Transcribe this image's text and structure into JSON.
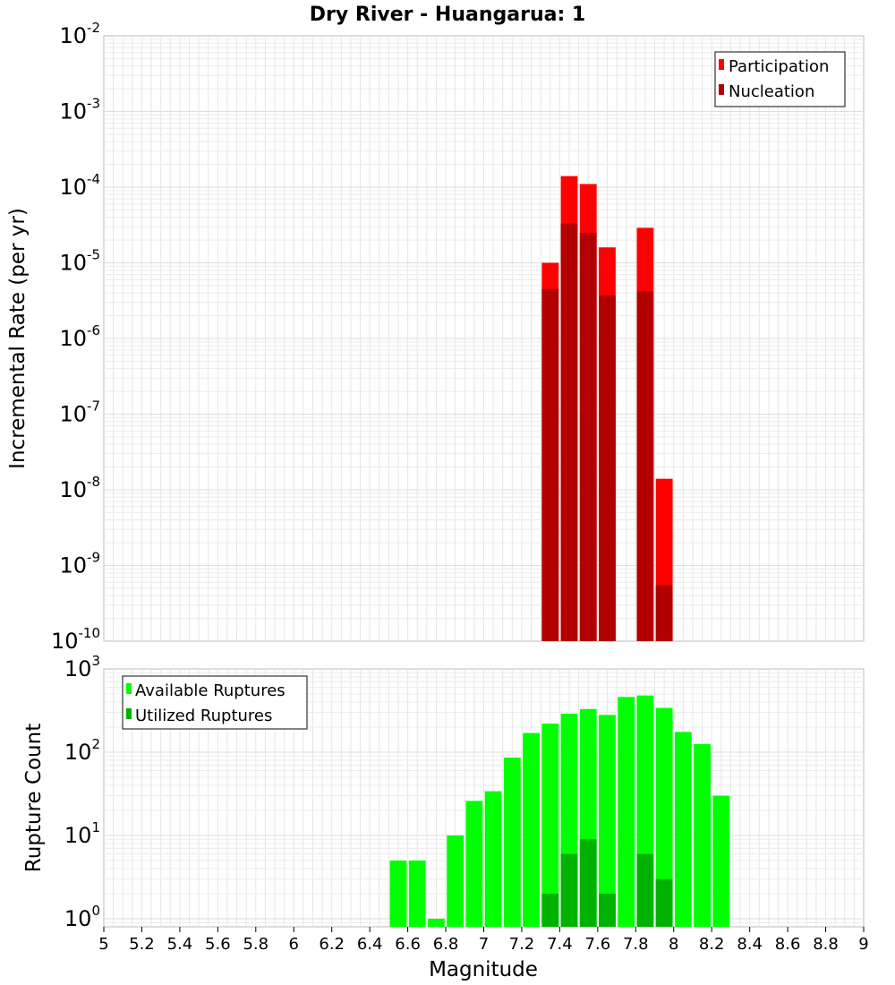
{
  "title": "Dry River - Huangarua: 1",
  "xlabel": "Magnitude",
  "chart_data": [
    {
      "type": "bar",
      "ylabel": "Incremental Rate (per yr)",
      "yscale": "log",
      "ylim": [
        1e-10,
        0.01
      ],
      "xlim": [
        5,
        9
      ],
      "y_tick_exponents": [
        -10,
        -9,
        -8,
        -7,
        -6,
        -5,
        -4,
        -3,
        -2
      ],
      "legend_position": "top-right",
      "grid": true,
      "bar_width": 0.1,
      "series": [
        {
          "name": "Participation",
          "color": "#ff0000",
          "x": [
            7.35,
            7.45,
            7.55,
            7.65,
            7.85,
            7.95
          ],
          "values": [
            1e-05,
            0.00014,
            0.00011,
            1.6e-05,
            2.9e-05,
            1.4e-08
          ]
        },
        {
          "name": "Nucleation",
          "color": "#b20000",
          "x": [
            7.35,
            7.45,
            7.55,
            7.65,
            7.85,
            7.95
          ],
          "values": [
            4.5e-06,
            3.3e-05,
            2.5e-05,
            3.7e-06,
            4.2e-06,
            5.5e-10
          ]
        }
      ]
    },
    {
      "type": "bar",
      "ylabel": "Rupture Count",
      "yscale": "log",
      "ylim": [
        0.8,
        1000
      ],
      "xlim": [
        5,
        9
      ],
      "y_tick_exponents": [
        0,
        1,
        2,
        3
      ],
      "legend_position": "top-left",
      "grid": true,
      "bar_width": 0.1,
      "series": [
        {
          "name": "Available Ruptures",
          "color": "#00ff00",
          "x": [
            6.55,
            6.65,
            6.75,
            6.85,
            6.95,
            7.05,
            7.15,
            7.25,
            7.35,
            7.45,
            7.55,
            7.65,
            7.75,
            7.85,
            7.95,
            8.05,
            8.15,
            8.25
          ],
          "values": [
            5,
            5,
            1,
            10,
            26,
            34,
            86,
            170,
            220,
            290,
            330,
            280,
            460,
            480,
            340,
            175,
            125,
            30
          ]
        },
        {
          "name": "Utilized Ruptures",
          "color": "#00b200",
          "x": [
            7.35,
            7.45,
            7.55,
            7.65,
            7.85,
            7.95
          ],
          "values": [
            2,
            6,
            9,
            2,
            6,
            3
          ]
        }
      ]
    }
  ],
  "x_ticks": [
    "5",
    "5.2",
    "5.4",
    "5.6",
    "5.8",
    "6",
    "6.2",
    "6.4",
    "6.6",
    "6.8",
    "7",
    "7.2",
    "7.4",
    "7.6",
    "7.8",
    "8",
    "8.2",
    "8.4",
    "8.6",
    "8.8",
    "9"
  ]
}
